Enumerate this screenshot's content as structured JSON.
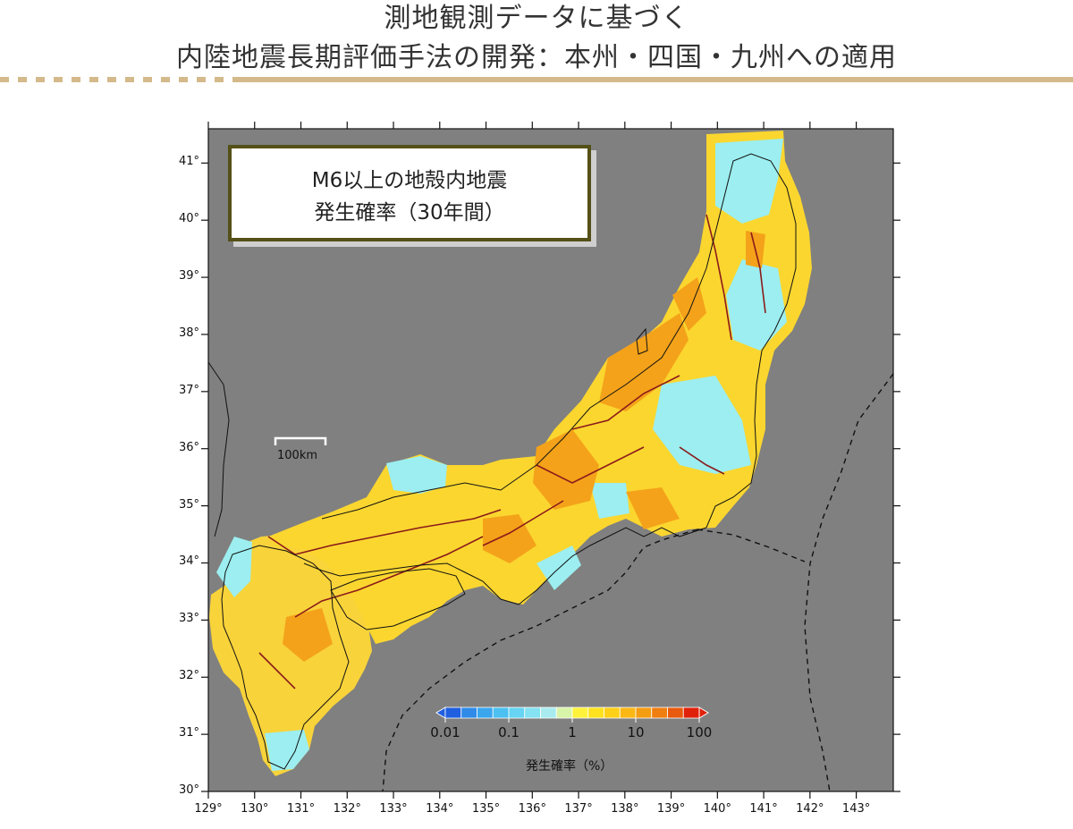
{
  "header": {
    "title_line1": "測地観測データに基づく",
    "title_line2": "内陸地震長期評価手法の開発：本州・四国・九州への適用"
  },
  "map": {
    "background_color": "#808080",
    "legend_box": {
      "line1": "M6以上の地殻内地震",
      "line2": "発生確率（30年間）"
    },
    "scale_bar_label": "100km",
    "lat_ticks": [
      "41°",
      "40°",
      "39°",
      "38°",
      "37°",
      "36°",
      "35°",
      "34°",
      "33°",
      "32°",
      "31°",
      "30°"
    ],
    "lon_ticks": [
      "129°",
      "130°",
      "131°",
      "132°",
      "133°",
      "134°",
      "135°",
      "136°",
      "137°",
      "138°",
      "139°",
      "140°",
      "141°",
      "142°",
      "143°"
    ],
    "lon_range": [
      129,
      143.8
    ],
    "lat_range": [
      30,
      41.6
    ]
  },
  "colorbar": {
    "title": "発生確率（%）",
    "tick_labels": [
      "0.01",
      "0.1",
      "1",
      "10",
      "100"
    ],
    "colors": [
      "#1f5fe0",
      "#2f8ae8",
      "#3aa6ee",
      "#4cc0f0",
      "#66d4f2",
      "#84e2f2",
      "#a8ecf0",
      "#d8f4a8",
      "#fff23a",
      "#ffe21e",
      "#ffd018",
      "#fbb815",
      "#f59d12",
      "#ef7f10",
      "#e85a0e",
      "#e0210a"
    ]
  }
}
